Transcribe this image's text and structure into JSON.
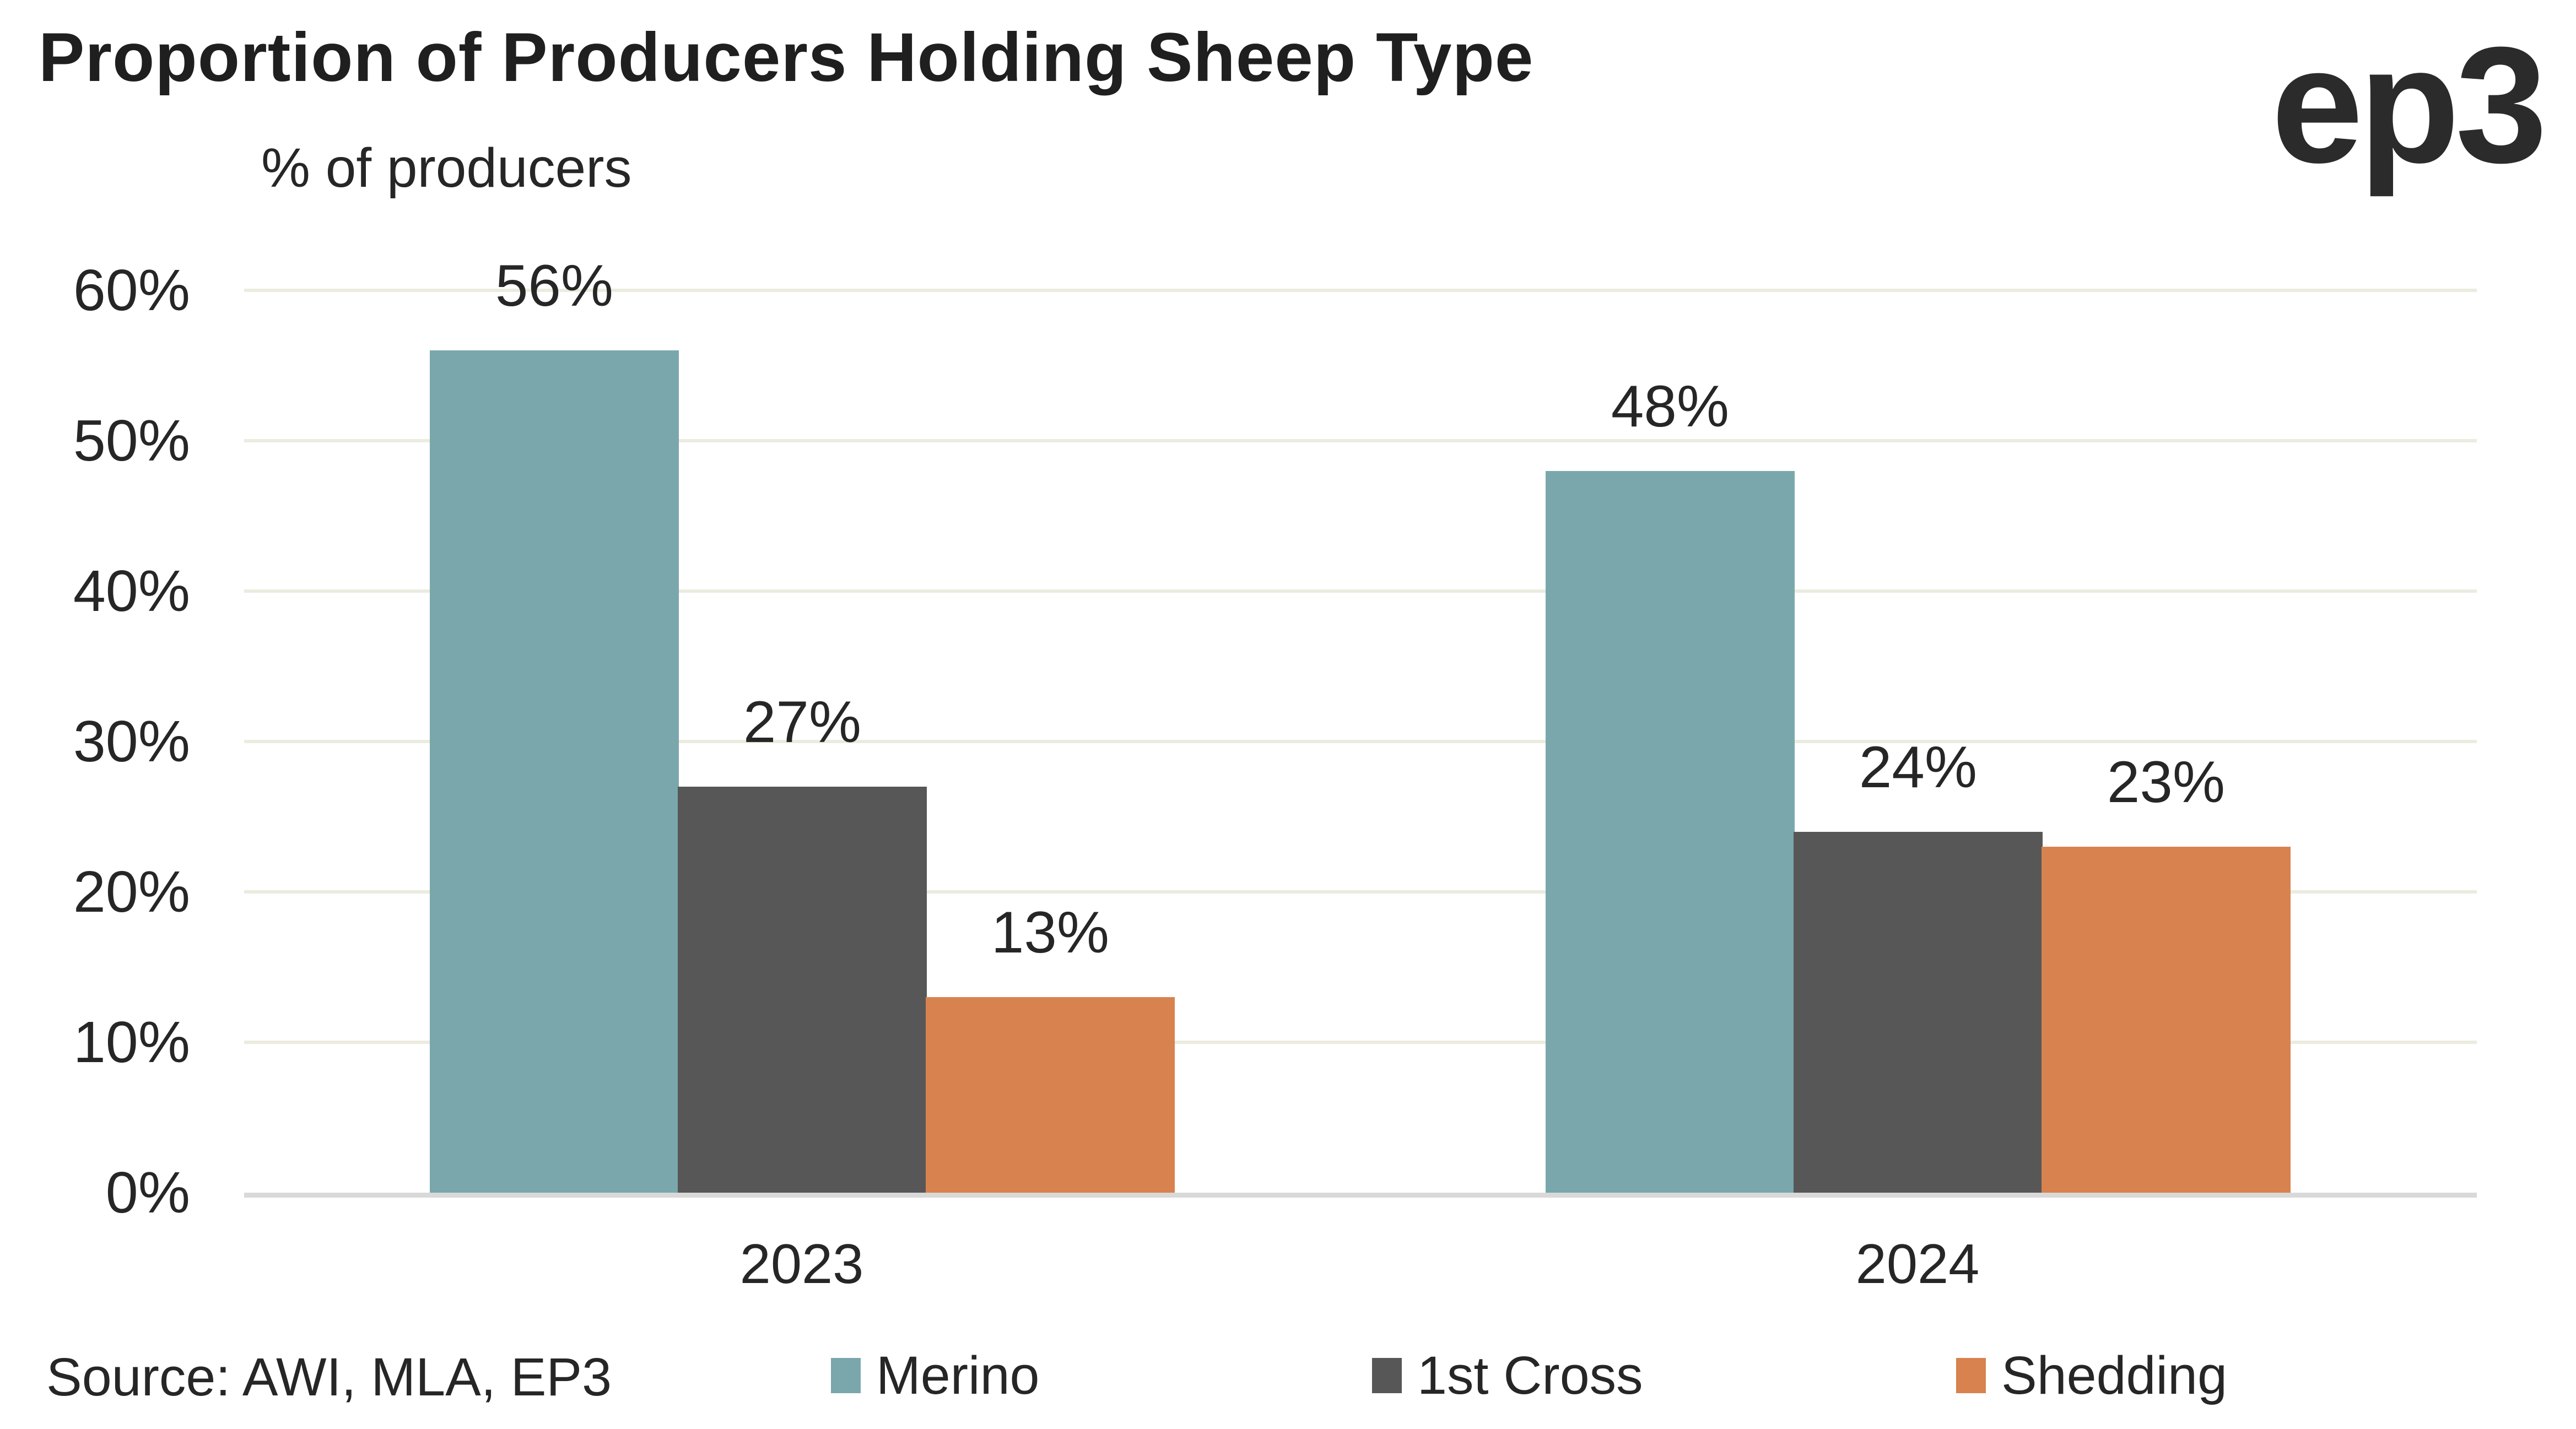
{
  "title": "Proportion of Producers Holding Sheep Type",
  "subtitle": "% of producers",
  "logo_text": "ep3",
  "source_note": "Source: AWI, MLA, EP3",
  "colors": {
    "merino": "#7AA7AC",
    "first_cross": "#575757",
    "shedding": "#D8824F",
    "gridline": "#ECEBDF",
    "axis_baseline": "#D9D9D9",
    "text": "#262626"
  },
  "chart_data": {
    "type": "bar",
    "title": "Proportion of Producers Holding Sheep Type",
    "ylabel": "% of producers",
    "xlabel": "",
    "categories": [
      "2023",
      "2024"
    ],
    "series": [
      {
        "name": "Merino",
        "color": "#7AA7AC",
        "values": [
          56,
          48
        ]
      },
      {
        "name": "1st Cross",
        "color": "#575757",
        "values": [
          27,
          24
        ]
      },
      {
        "name": "Shedding",
        "color": "#D8824F",
        "values": [
          13,
          23
        ]
      }
    ],
    "value_labels": [
      [
        "56%",
        "48%"
      ],
      [
        "27%",
        "24%"
      ],
      [
        "13%",
        "23%"
      ]
    ],
    "value_suffix": "%",
    "yticks": [
      0,
      10,
      20,
      30,
      40,
      50,
      60
    ],
    "ytick_labels": [
      "0%",
      "10%",
      "20%",
      "30%",
      "40%",
      "50%",
      "60%"
    ],
    "ylim": [
      0,
      60
    ],
    "grid": "horizontal",
    "legend_position": "bottom"
  }
}
